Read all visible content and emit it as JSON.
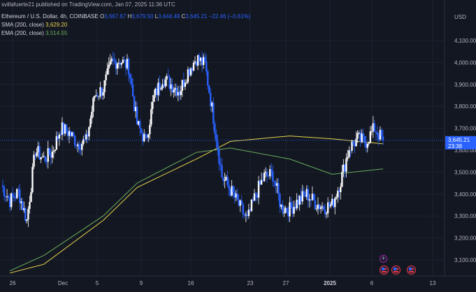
{
  "header": {
    "published_text": "svillafuerte21 published on TradingView.com, Jan 07, 2025 11:36 UTC"
  },
  "legend": {
    "symbol": "Ethereum / U.S. Dollar, 4h, COINBASE",
    "ohlc": [
      {
        "label": "O",
        "value": "3,667.67"
      },
      {
        "label": "H",
        "value": "3,679.50"
      },
      {
        "label": "L",
        "value": "3,644.48"
      },
      {
        "label": "C",
        "value": "3,645.21"
      }
    ],
    "change": "−22.46 (−0.61%)",
    "sma": {
      "label": "SMA (200, close)",
      "value": "3,629.20",
      "color": "#e8d44d"
    },
    "ema": {
      "label": "EMA (200, close)",
      "value": "3,514.55",
      "color": "#6aad5a"
    }
  },
  "price_axis": {
    "currency": "USD",
    "ticks": [
      "4,100.00",
      "4,000.00",
      "3,900.00",
      "3,800.00",
      "3,700.00",
      "3,600.00",
      "3,500.00",
      "3,400.00",
      "3,300.00",
      "3,200.00",
      "3,100.00"
    ],
    "last_price": "3,645.21",
    "countdown": "23:38"
  },
  "time_axis": {
    "ticks": [
      "26",
      "Dec",
      "5",
      "9",
      "16",
      "23",
      "27",
      "2025",
      "6",
      "13"
    ]
  },
  "colors": {
    "background": "#131722",
    "candle_up": "#ffffff",
    "candle_down": "#2962ff",
    "sma": "#e8d44d",
    "ema": "#6aad5a",
    "price_label": "#2962ff"
  },
  "chart_data": {
    "type": "candlestick",
    "symbol": "Ethereum / U.S. Dollar",
    "interval": "4h",
    "ylim": [
      3080,
      4150
    ],
    "series": [
      {
        "name": "SMA (200, close)",
        "x": [
          "Nov 24",
          "Nov 28",
          "Dec 5",
          "Dec 9",
          "Dec 16",
          "Dec 20",
          "Dec 27",
          "Jan 1",
          "Jan 7"
        ],
        "values": [
          3040,
          3080,
          3280,
          3430,
          3560,
          3640,
          3665,
          3652,
          3629
        ]
      },
      {
        "name": "EMA (200, close)",
        "x": [
          "Nov 24",
          "Nov 28",
          "Dec 5",
          "Dec 9",
          "Dec 16",
          "Dec 20",
          "Dec 27",
          "Jan 1",
          "Jan 7"
        ],
        "values": [
          3050,
          3120,
          3300,
          3450,
          3590,
          3610,
          3560,
          3490,
          3515
        ]
      }
    ],
    "ohlc": [
      {
        "x": "Nov 23",
        "close": 3440
      },
      {
        "x": "Nov 24",
        "close": 3370
      },
      {
        "x": "Nov 25",
        "close": 3410
      },
      {
        "x": "Nov 26",
        "close": 3280
      },
      {
        "x": "Nov 27",
        "close": 3600
      },
      {
        "x": "Nov 28",
        "close": 3560
      },
      {
        "x": "Nov 29",
        "close": 3590
      },
      {
        "x": "Nov 30",
        "close": 3700
      },
      {
        "x": "Dec 1",
        "close": 3680
      },
      {
        "x": "Dec 2",
        "close": 3630
      },
      {
        "x": "Dec 3",
        "close": 3640
      },
      {
        "x": "Dec 4",
        "close": 3850
      },
      {
        "x": "Dec 5",
        "close": 3880
      },
      {
        "x": "Dec 6",
        "close": 4000
      },
      {
        "x": "Dec 7",
        "close": 4010
      },
      {
        "x": "Dec 8",
        "close": 3980
      },
      {
        "x": "Dec 9",
        "close": 3720
      },
      {
        "x": "Dec 10",
        "close": 3640
      },
      {
        "x": "Dec 11",
        "close": 3840
      },
      {
        "x": "Dec 12",
        "close": 3930
      },
      {
        "x": "Dec 13",
        "close": 3900
      },
      {
        "x": "Dec 14",
        "close": 3870
      },
      {
        "x": "Dec 15",
        "close": 3960
      },
      {
        "x": "Dec 16",
        "close": 4020
      },
      {
        "x": "Dec 17",
        "close": 3990
      },
      {
        "x": "Dec 18",
        "close": 3750
      },
      {
        "x": "Dec 19",
        "close": 3480
      },
      {
        "x": "Dec 20",
        "close": 3420
      },
      {
        "x": "Dec 21",
        "close": 3350
      },
      {
        "x": "Dec 22",
        "close": 3280
      },
      {
        "x": "Dec 23",
        "close": 3400
      },
      {
        "x": "Dec 24",
        "close": 3480
      },
      {
        "x": "Dec 25",
        "close": 3490
      },
      {
        "x": "Dec 26",
        "close": 3340
      },
      {
        "x": "Dec 27",
        "close": 3330
      },
      {
        "x": "Dec 28",
        "close": 3370
      },
      {
        "x": "Dec 29",
        "close": 3400
      },
      {
        "x": "Dec 30",
        "close": 3360
      },
      {
        "x": "Dec 31",
        "close": 3340
      },
      {
        "x": "Jan 1",
        "close": 3350
      },
      {
        "x": "Jan 2",
        "close": 3460
      },
      {
        "x": "Jan 3",
        "close": 3610
      },
      {
        "x": "Jan 4",
        "close": 3650
      },
      {
        "x": "Jan 5",
        "close": 3640
      },
      {
        "x": "Jan 6",
        "close": 3700
      },
      {
        "x": "Jan 7",
        "close": 3645
      }
    ]
  }
}
